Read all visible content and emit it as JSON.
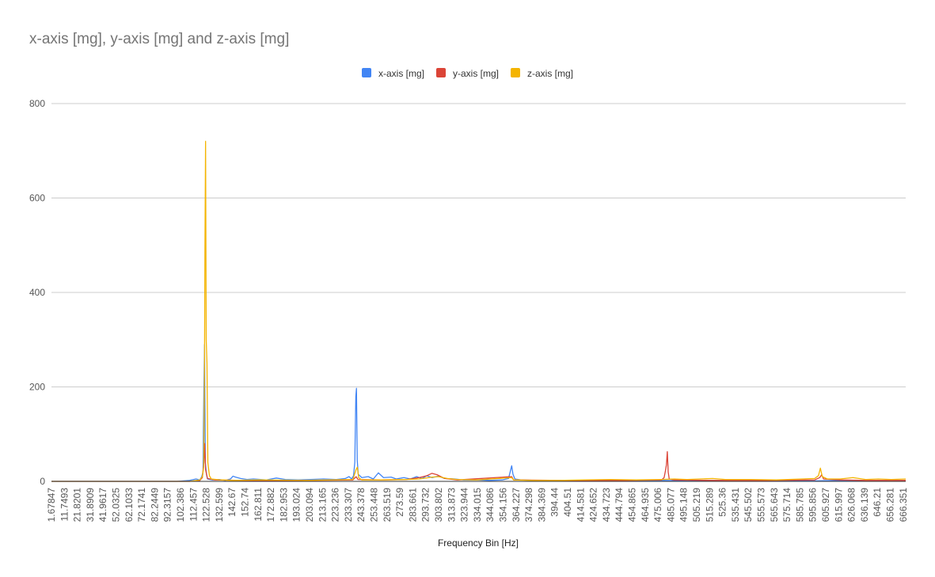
{
  "chart_data": {
    "type": "line",
    "title": "x-axis [mg], y-axis [mg] and z-axis [mg]",
    "xlabel": "Frequency Bin [Hz]",
    "ylabel": "",
    "ylim": [
      0,
      800
    ],
    "y_ticks": [
      "0",
      "200",
      "400",
      "600",
      "800"
    ],
    "x_ticks": [
      "1.67847",
      "11.7493",
      "21.8201",
      "31.8909",
      "41.9617",
      "52.0325",
      "62.1033",
      "72.1741",
      "82.2449",
      "92.3157",
      "102.386",
      "112.457",
      "122.528",
      "132.599",
      "142.67",
      "152.74",
      "162.811",
      "172.882",
      "182.953",
      "193.024",
      "203.094",
      "213.165",
      "223.236",
      "233.307",
      "243.378",
      "253.448",
      "263.519",
      "273.59",
      "283.661",
      "293.732",
      "303.802",
      "313.873",
      "323.944",
      "334.015",
      "344.086",
      "354.156",
      "364.227",
      "374.298",
      "384.369",
      "394.44",
      "404.51",
      "414.581",
      "424.652",
      "434.723",
      "444.794",
      "454.865",
      "464.935",
      "475.006",
      "485.077",
      "495.148",
      "505.219",
      "515.289",
      "525.36",
      "535.431",
      "545.502",
      "555.573",
      "565.643",
      "575.714",
      "585.785",
      "595.856",
      "605.927",
      "615.997",
      "626.068",
      "636.139",
      "646.21",
      "656.281",
      "666.351"
    ],
    "xlim": [
      1.67847,
      671.4
    ],
    "grid": true,
    "legend_position": "top",
    "series": [
      {
        "name": "x-axis [mg]",
        "color": "#4285F4",
        "points": [
          [
            1.68,
            0
          ],
          [
            100,
            0
          ],
          [
            110,
            2
          ],
          [
            115,
            5
          ],
          [
            118,
            3
          ],
          [
            119.5,
            10
          ],
          [
            120.5,
            20
          ],
          [
            121.2,
            195
          ],
          [
            121.7,
            290
          ],
          [
            122.3,
            40
          ],
          [
            123.2,
            15
          ],
          [
            124,
            5
          ],
          [
            128,
            3
          ],
          [
            133,
            4
          ],
          [
            138,
            2
          ],
          [
            142,
            5
          ],
          [
            144,
            11
          ],
          [
            146,
            9
          ],
          [
            150,
            6
          ],
          [
            155,
            4
          ],
          [
            160,
            5
          ],
          [
            170,
            3
          ],
          [
            178,
            7
          ],
          [
            185,
            4
          ],
          [
            195,
            3
          ],
          [
            205,
            4
          ],
          [
            215,
            5
          ],
          [
            225,
            4
          ],
          [
            232,
            6
          ],
          [
            235,
            10
          ],
          [
            237,
            5
          ],
          [
            238.5,
            12
          ],
          [
            239.5,
            40
          ],
          [
            240.3,
            180
          ],
          [
            240.8,
            197
          ],
          [
            241.4,
            45
          ],
          [
            242.2,
            15
          ],
          [
            245,
            8
          ],
          [
            250,
            10
          ],
          [
            254,
            5
          ],
          [
            258,
            18
          ],
          [
            262,
            8
          ],
          [
            268,
            9
          ],
          [
            272,
            5
          ],
          [
            278,
            8
          ],
          [
            283,
            5
          ],
          [
            288,
            10
          ],
          [
            292,
            6
          ],
          [
            296,
            12
          ],
          [
            300,
            8
          ],
          [
            305,
            11
          ],
          [
            310,
            6
          ],
          [
            318,
            5
          ],
          [
            325,
            3
          ],
          [
            335,
            3
          ],
          [
            345,
            2
          ],
          [
            355,
            3
          ],
          [
            360,
            6
          ],
          [
            362.5,
            33
          ],
          [
            363.5,
            15
          ],
          [
            365,
            5
          ],
          [
            370,
            3
          ],
          [
            380,
            2
          ],
          [
            400,
            2
          ],
          [
            420,
            1
          ],
          [
            440,
            2
          ],
          [
            460,
            1
          ],
          [
            480,
            2
          ],
          [
            500,
            1
          ],
          [
            520,
            2
          ],
          [
            540,
            1
          ],
          [
            560,
            1
          ],
          [
            580,
            2
          ],
          [
            600,
            1
          ],
          [
            620,
            2
          ],
          [
            640,
            1
          ],
          [
            660,
            1
          ],
          [
            671.4,
            1
          ]
        ]
      },
      {
        "name": "y-axis [mg]",
        "color": "#DB4437",
        "points": [
          [
            1.68,
            0
          ],
          [
            110,
            0
          ],
          [
            118,
            2
          ],
          [
            120,
            8
          ],
          [
            121.2,
            40
          ],
          [
            121.8,
            80
          ],
          [
            122.5,
            25
          ],
          [
            124,
            6
          ],
          [
            130,
            3
          ],
          [
            150,
            2
          ],
          [
            200,
            2
          ],
          [
            238,
            3
          ],
          [
            240.5,
            10
          ],
          [
            242,
            4
          ],
          [
            260,
            3
          ],
          [
            280,
            4
          ],
          [
            290,
            8
          ],
          [
            296,
            12
          ],
          [
            300,
            17
          ],
          [
            304,
            14
          ],
          [
            310,
            6
          ],
          [
            320,
            3
          ],
          [
            362.5,
            10
          ],
          [
            364,
            3
          ],
          [
            400,
            2
          ],
          [
            450,
            2
          ],
          [
            480,
            3
          ],
          [
            482,
            8
          ],
          [
            483,
            22
          ],
          [
            483.8,
            35
          ],
          [
            484.5,
            63
          ],
          [
            485.2,
            20
          ],
          [
            486,
            5
          ],
          [
            490,
            3
          ],
          [
            520,
            2
          ],
          [
            560,
            2
          ],
          [
            600,
            3
          ],
          [
            604,
            8
          ],
          [
            605.5,
            14
          ],
          [
            607,
            5
          ],
          [
            620,
            3
          ],
          [
            640,
            2
          ],
          [
            671.4,
            2
          ]
        ]
      },
      {
        "name": "z-axis [mg]",
        "color": "#F4B400",
        "points": [
          [
            1.68,
            0
          ],
          [
            110,
            0
          ],
          [
            118,
            3
          ],
          [
            120,
            10
          ],
          [
            121,
            30
          ],
          [
            121.6,
            200
          ],
          [
            122.0,
            485
          ],
          [
            122.5,
            720
          ],
          [
            123.0,
            300
          ],
          [
            123.6,
            250
          ],
          [
            124.3,
            40
          ],
          [
            125.5,
            12
          ],
          [
            127,
            5
          ],
          [
            135,
            3
          ],
          [
            145,
            2
          ],
          [
            165,
            3
          ],
          [
            200,
            2
          ],
          [
            238,
            4
          ],
          [
            240.5,
            25
          ],
          [
            241.5,
            30
          ],
          [
            242.5,
            8
          ],
          [
            245,
            3
          ],
          [
            260,
            3
          ],
          [
            280,
            4
          ],
          [
            290,
            5
          ],
          [
            300,
            9
          ],
          [
            305,
            10
          ],
          [
            312,
            6
          ],
          [
            320,
            4
          ],
          [
            335,
            3
          ],
          [
            362.5,
            8
          ],
          [
            364,
            3
          ],
          [
            380,
            2
          ],
          [
            400,
            2
          ],
          [
            420,
            3
          ],
          [
            440,
            4
          ],
          [
            460,
            3
          ],
          [
            480,
            4
          ],
          [
            490,
            5
          ],
          [
            500,
            4
          ],
          [
            510,
            5
          ],
          [
            520,
            6
          ],
          [
            530,
            4
          ],
          [
            550,
            4
          ],
          [
            570,
            3
          ],
          [
            590,
            5
          ],
          [
            600,
            6
          ],
          [
            603,
            12
          ],
          [
            604.5,
            28
          ],
          [
            606,
            10
          ],
          [
            610,
            5
          ],
          [
            620,
            5
          ],
          [
            630,
            8
          ],
          [
            640,
            4
          ],
          [
            650,
            5
          ],
          [
            660,
            4
          ],
          [
            671.4,
            5
          ]
        ]
      }
    ]
  }
}
